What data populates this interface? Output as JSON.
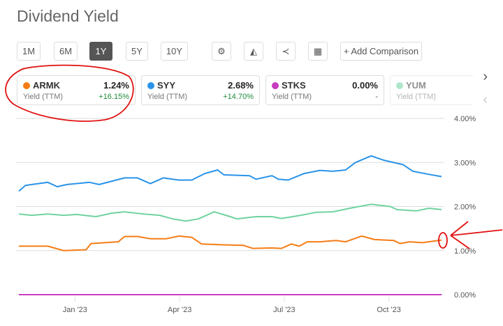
{
  "title": "Dividend Yield",
  "ranges": [
    "1M",
    "6M",
    "1Y",
    "5Y",
    "10Y"
  ],
  "active_range": "1Y",
  "add_comparison": "+ Add Comparison",
  "cards": [
    {
      "symbol": "ARMK",
      "value": "1.24%",
      "label": "Yield (TTM)",
      "change": "+16.15%",
      "color": "#f57c14"
    },
    {
      "symbol": "SYY",
      "value": "2.68%",
      "label": "Yield (TTM)",
      "change": "+14.70%",
      "color": "#2a93e8"
    },
    {
      "symbol": "STKS",
      "value": "0.00%",
      "label": "Yield (TTM)",
      "change": "-",
      "color": "#c83cc0"
    },
    {
      "symbol": "YUM",
      "value": "",
      "label": "Yield (TTM)",
      "change": "",
      "color": "#6fd3a0"
    }
  ],
  "chart_data": {
    "type": "line",
    "title": "Dividend Yield",
    "xlabel": "",
    "ylabel": "Yield (TTM)",
    "x_unit": "months since Jan 2023",
    "xlim": [
      -1.61,
      10.51
    ],
    "ylim": [
      0,
      4
    ],
    "yticks": [
      "0.00%",
      "1.00%",
      "2.00%",
      "3.00%",
      "4.00%"
    ],
    "xticks": [
      {
        "label": "Jan '23",
        "x": 0
      },
      {
        "label": "Apr '23",
        "x": 3
      },
      {
        "label": "Jul '23",
        "x": 6
      },
      {
        "label": "Oct '23",
        "x": 9
      }
    ],
    "grid": true,
    "series": [
      {
        "name": "SYY",
        "color": "#2a93e8",
        "x": [
          -1.61,
          -1.42,
          -0.78,
          -0.51,
          -0.23,
          0.41,
          0.69,
          1.42,
          1.79,
          2.16,
          2.53,
          2.98,
          3.35,
          3.72,
          4.09,
          4.27,
          5.0,
          5.19,
          5.65,
          5.83,
          6.11,
          6.57,
          7.02,
          7.39,
          7.76,
          8.04,
          8.49,
          8.86,
          9.41,
          9.69,
          10.15,
          10.51
        ],
        "y": [
          2.35,
          2.48,
          2.55,
          2.45,
          2.5,
          2.55,
          2.5,
          2.65,
          2.65,
          2.52,
          2.65,
          2.6,
          2.6,
          2.75,
          2.83,
          2.72,
          2.7,
          2.62,
          2.7,
          2.62,
          2.6,
          2.75,
          2.82,
          2.8,
          2.83,
          3.0,
          3.15,
          3.05,
          2.95,
          2.8,
          2.73,
          2.68
        ]
      },
      {
        "name": "YUM",
        "color": "#6fd3a0",
        "x": [
          -1.61,
          -1.24,
          -0.78,
          -0.32,
          0.05,
          0.6,
          1.06,
          1.42,
          1.97,
          2.43,
          2.8,
          3.17,
          3.54,
          3.99,
          4.45,
          4.64,
          5.19,
          5.65,
          5.92,
          6.47,
          6.93,
          7.39,
          7.94,
          8.49,
          9.04,
          9.23,
          9.78,
          10.15,
          10.51
        ],
        "y": [
          1.83,
          1.8,
          1.83,
          1.8,
          1.82,
          1.77,
          1.85,
          1.88,
          1.83,
          1.8,
          1.72,
          1.67,
          1.72,
          1.88,
          1.77,
          1.72,
          1.77,
          1.77,
          1.73,
          1.8,
          1.87,
          1.88,
          1.97,
          2.05,
          2.0,
          1.93,
          1.9,
          1.96,
          1.93
        ]
      },
      {
        "name": "ARMK",
        "color": "#f57c14",
        "x": [
          -1.61,
          -0.78,
          -0.32,
          0.32,
          0.46,
          1.24,
          1.42,
          1.79,
          2.16,
          2.62,
          2.98,
          3.35,
          3.63,
          4.27,
          4.82,
          5.1,
          5.65,
          5.92,
          6.2,
          6.43,
          6.66,
          7.02,
          7.48,
          7.76,
          8.22,
          8.59,
          9.14,
          9.32,
          9.6,
          9.96,
          10.51
        ],
        "y": [
          1.1,
          1.1,
          1.0,
          1.02,
          1.16,
          1.2,
          1.32,
          1.32,
          1.27,
          1.27,
          1.33,
          1.3,
          1.15,
          1.13,
          1.12,
          1.05,
          1.06,
          1.05,
          1.15,
          1.1,
          1.2,
          1.2,
          1.23,
          1.2,
          1.33,
          1.25,
          1.23,
          1.16,
          1.2,
          1.18,
          1.24
        ]
      },
      {
        "name": "STKS",
        "color": "#c83cc0",
        "x": [
          -1.61,
          10.51
        ],
        "y": [
          0,
          0
        ]
      }
    ]
  }
}
